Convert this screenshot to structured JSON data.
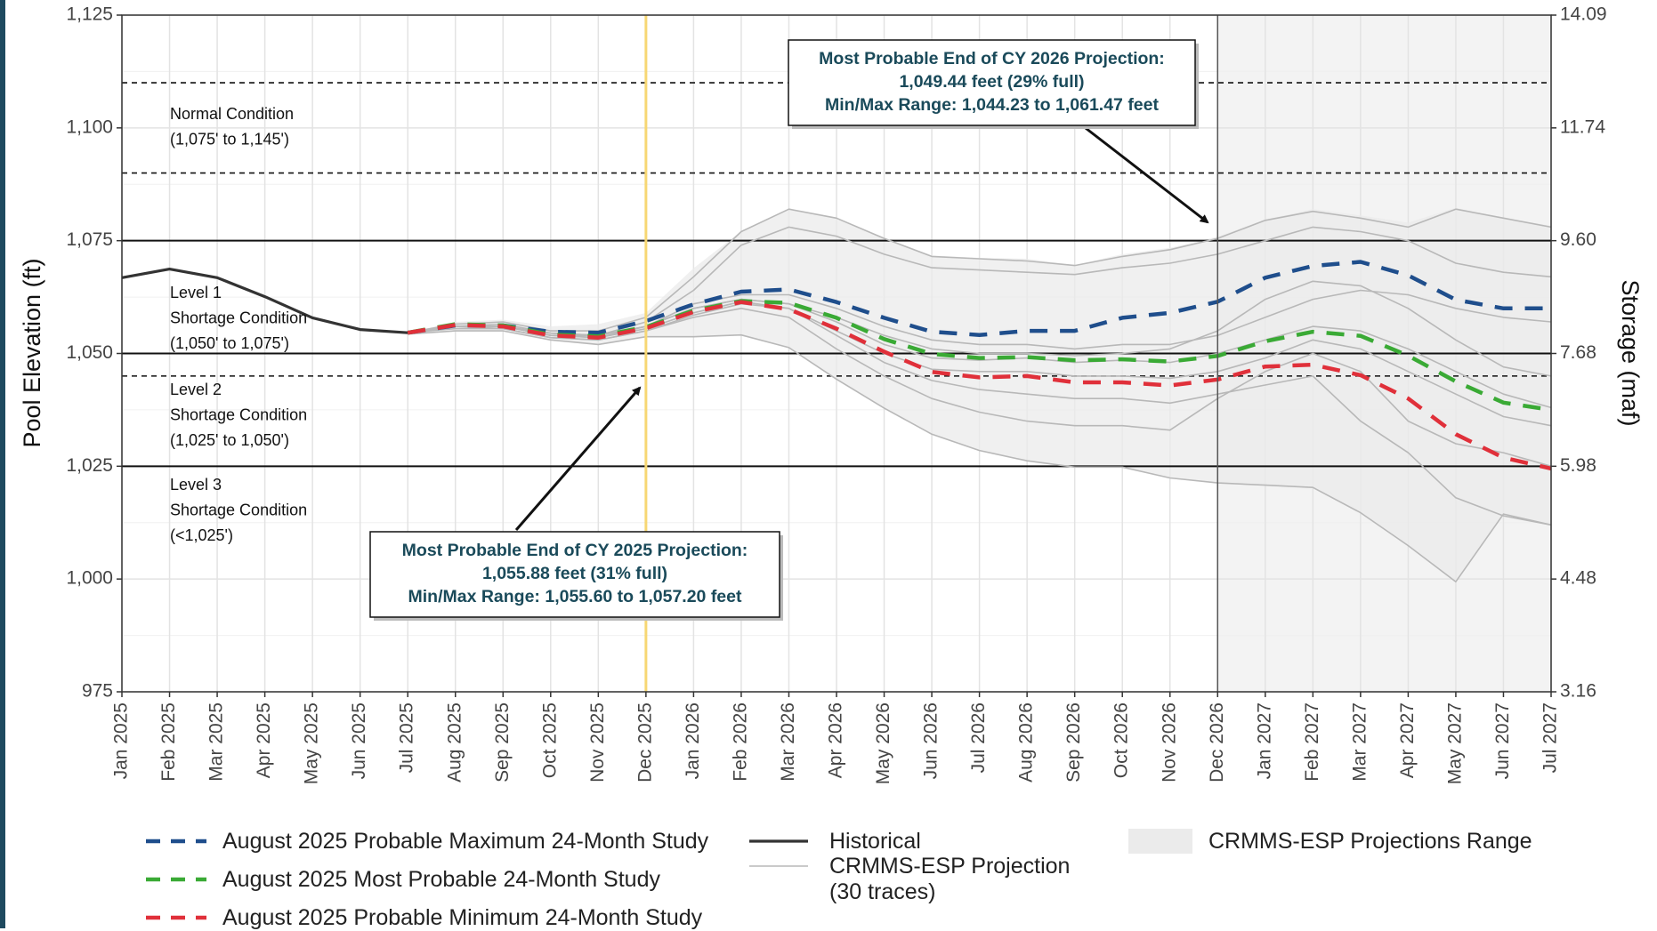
{
  "chart_data": {
    "type": "line",
    "y_label": "Pool Elevation (ft)",
    "y2_label": "Storage (maf)",
    "x": [
      "Jan 2025",
      "Feb 2025",
      "Mar 2025",
      "Apr 2025",
      "May 2025",
      "Jun 2025",
      "Jul 2025",
      "Aug 2025",
      "Sep 2025",
      "Oct 2025",
      "Nov 2025",
      "Dec 2025",
      "Jan 2026",
      "Feb 2026",
      "Mar 2026",
      "Apr 2026",
      "May 2026",
      "Jun 2026",
      "Jul 2026",
      "Aug 2026",
      "Sep 2026",
      "Oct 2026",
      "Nov 2026",
      "Dec 2026",
      "Jan 2027",
      "Feb 2027",
      "Mar 2027",
      "Apr 2027",
      "May 2027",
      "Jun 2027",
      "Jul 2027"
    ],
    "ylim": [
      975,
      1125
    ],
    "yticks": [
      975,
      {
        "value": 1000,
        "label": "1,000"
      },
      {
        "value": 1025,
        "label": "1,025"
      },
      {
        "value": 1050,
        "label": "1,050"
      },
      {
        "value": 1075,
        "label": "1,075"
      },
      {
        "value": 1100,
        "label": "1,100"
      },
      {
        "value": 1125,
        "label": "1,125"
      }
    ],
    "y2ticks": [
      3.16,
      4.48,
      5.98,
      7.68,
      {
        "value": 9.6,
        "label": "9.60"
      },
      11.74,
      14.09
    ],
    "grid": true,
    "series": [
      {
        "name": "Historical",
        "color": "#333333",
        "style": "solid",
        "values": [
          1066.8,
          1068.7,
          1066.8,
          1062.6,
          1057.9,
          1055.3,
          1054.6,
          null,
          null,
          null,
          null,
          null,
          null,
          null,
          null,
          null,
          null,
          null,
          null,
          null,
          null,
          null,
          null,
          null,
          null,
          null,
          null,
          null,
          null,
          null,
          null
        ]
      },
      {
        "name": "August 2025 Probable Maximum 24-Month Study",
        "color": "#1f4e8c",
        "style": "dashed",
        "values": [
          null,
          null,
          null,
          null,
          null,
          null,
          1054.6,
          1056.2,
          1056.2,
          1054.8,
          1054.6,
          1057.2,
          1060.9,
          1063.7,
          1064.2,
          1061.4,
          1057.9,
          1054.8,
          1054.1,
          1055.0,
          1055.0,
          1057.9,
          1059.0,
          1061.47,
          1066.8,
          1069.4,
          1070.3,
          1067.3,
          1061.9,
          1060.0,
          1060.0
        ]
      },
      {
        "name": "August 2025 Most Probable 24-Month Study",
        "color": "#3aaa35",
        "style": "dashed",
        "values": [
          null,
          null,
          null,
          null,
          null,
          null,
          1054.6,
          1056.5,
          1056.2,
          1054.2,
          1053.8,
          1055.88,
          1059.5,
          1061.6,
          1061.2,
          1057.9,
          1053.2,
          1049.9,
          1049.0,
          1049.2,
          1048.5,
          1048.7,
          1048.2,
          1049.44,
          1052.7,
          1054.8,
          1053.9,
          1049.5,
          1043.8,
          1039.1,
          1037.5
        ]
      },
      {
        "name": "August 2025 Probable Minimum 24-Month Study",
        "color": "#e0303a",
        "style": "dashed",
        "values": [
          null,
          null,
          null,
          null,
          null,
          null,
          1054.6,
          1056.3,
          1056.0,
          1054.0,
          1053.5,
          1055.6,
          1059.2,
          1061.4,
          1059.8,
          1055.5,
          1050.4,
          1045.9,
          1044.7,
          1045.0,
          1043.6,
          1043.6,
          1042.9,
          1044.23,
          1047.1,
          1047.5,
          1045.2,
          1040.0,
          1032.1,
          1026.9,
          1024.5
        ]
      }
    ],
    "traces": {
      "name": "CRMMS-ESP Projection (30 traces)",
      "color": "#b8b8b8",
      "values": [
        [
          null,
          null,
          null,
          null,
          null,
          null,
          1054.6,
          1056.5,
          1057,
          1055,
          1055,
          1058,
          1067,
          1077,
          1082,
          1080,
          1075.5,
          1071.5,
          1071,
          1070.5,
          1069.5,
          1071.5,
          1073,
          1075.5,
          1079.5,
          1081.5,
          1080,
          1078,
          1082,
          1080,
          1078
        ],
        [
          null,
          null,
          null,
          null,
          null,
          null,
          1054.6,
          1056,
          1056.5,
          1054.5,
          1054,
          1057,
          1064,
          1074,
          1078,
          1076,
          1072,
          1069,
          1068.5,
          1068,
          1067.5,
          1069,
          1070,
          1072,
          1075,
          1078,
          1077,
          1075,
          1070,
          1068,
          1067
        ],
        [
          null,
          null,
          null,
          null,
          null,
          null,
          1054.6,
          1056,
          1056,
          1054.5,
          1054,
          1056,
          1061,
          1063,
          1063,
          1060,
          1056,
          1053,
          1052,
          1052,
          1051,
          1052,
          1052,
          1054,
          1058,
          1062,
          1064,
          1063,
          1060,
          1058,
          1057
        ],
        [
          null,
          null,
          null,
          null,
          null,
          null,
          1054.6,
          1056,
          1056,
          1054,
          1053.5,
          1056,
          1060,
          1062,
          1061,
          1057,
          1052,
          1049,
          1048.5,
          1049,
          1048,
          1048.5,
          1048,
          1050,
          1053,
          1056,
          1055,
          1051,
          1046,
          1041,
          1038
        ],
        [
          null,
          null,
          null,
          null,
          null,
          null,
          1054.6,
          1056,
          1056,
          1054,
          1053.5,
          1055.5,
          1059,
          1061.5,
          1060,
          1055,
          1050,
          1046.5,
          1046,
          1046,
          1045,
          1045,
          1044.5,
          1046,
          1049,
          1053,
          1051,
          1046,
          1041,
          1036,
          1034
        ],
        [
          null,
          null,
          null,
          null,
          null,
          null,
          1054.6,
          1056,
          1055.5,
          1053.5,
          1053,
          1055,
          1058,
          1060,
          1058,
          1051,
          1045,
          1040,
          1037,
          1035,
          1034,
          1034,
          1033,
          1040,
          1046,
          1050,
          1046,
          1035,
          1030,
          1028,
          1025
        ],
        [
          null,
          null,
          null,
          null,
          null,
          null,
          1054.6,
          1055.5,
          1055.5,
          1053.5,
          1053,
          1055,
          1058.5,
          1061,
          1060,
          1054,
          1048,
          1044,
          1042,
          1041,
          1040,
          1040,
          1039,
          1041,
          1043,
          1045,
          1035,
          1028,
          1018,
          1014,
          1012
        ],
        [
          null,
          null,
          null,
          null,
          null,
          null,
          1054.3,
          1055,
          1055,
          1053,
          1052,
          1053.7,
          1053.7,
          1054.1,
          1051.3,
          1044.3,
          1037.9,
          1032.1,
          1028.5,
          1026.2,
          1024.8,
          1024.8,
          1022.4,
          1021.3,
          1020.8,
          1020.3,
          1014.7,
          1007.4,
          999.4,
          1014.4,
          1012
        ],
        [
          null,
          null,
          null,
          null,
          null,
          null,
          1054.6,
          1056,
          1056,
          1054,
          1054,
          1056,
          1060,
          1062,
          1061,
          1058,
          1054,
          1051,
          1050,
          1050,
          1049.5,
          1050,
          1051,
          1055,
          1062,
          1066,
          1065,
          1060,
          1053,
          1047,
          1045
        ]
      ]
    },
    "range": {
      "name": "CRMMS-ESP Projections Range",
      "color": "#ebebeb",
      "upper": [
        null,
        null,
        null,
        null,
        null,
        null,
        1054.6,
        1057,
        1057.5,
        1056,
        1056.5,
        1059,
        1068.9,
        1077.1,
        1082,
        1080,
        1075.7,
        1071.7,
        1071.2,
        1071,
        1069.6,
        1072,
        1073.4,
        1075.9,
        1079.7,
        1082,
        1080.6,
        1079,
        1082.3,
        1080,
        1078.3
      ],
      "lower": [
        null,
        null,
        null,
        null,
        null,
        null,
        1054.3,
        1055,
        1055,
        1053,
        1052,
        1053.7,
        1053.7,
        1054.1,
        1051.3,
        1044.3,
        1037.9,
        1032.1,
        1028.5,
        1026.2,
        1024.8,
        1024.8,
        1022.4,
        1021.3,
        1020.8,
        1020.3,
        1014.7,
        1007.4,
        999.4,
        1014.4,
        1012
      ]
    },
    "reference_lines": [
      {
        "value": 1110,
        "style": "dashed"
      },
      {
        "value": 1090,
        "style": "dashed"
      },
      {
        "value": 1075,
        "style": "solid"
      },
      {
        "value": 1050,
        "style": "solid"
      },
      {
        "value": 1045,
        "style": "dashed"
      },
      {
        "value": 1025,
        "style": "solid"
      }
    ],
    "vertical_lines": [
      {
        "x": "Dec 2025",
        "color": "#f7d774"
      },
      {
        "x": "Dec 2026",
        "color": "#555555"
      }
    ],
    "shaded_from": "Dec 2026",
    "condition_labels": [
      [
        "Normal Condition",
        "(1,075' to 1,145')"
      ],
      [
        "Level 1",
        "Shortage Condition",
        "(1,050' to 1,075')"
      ],
      [
        "Level 2",
        "Shortage Condition",
        "(1,025' to 1,050')"
      ],
      [
        "Level 3",
        "Shortage Condition",
        "(<1,025')"
      ]
    ],
    "annotations": [
      {
        "lines": [
          "Most Probable End of CY 2026 Projection:",
          "1,049.44 feet (29% full)",
          "Min/Max Range: 1,044.23 to 1,061.47 feet"
        ]
      },
      {
        "lines": [
          "Most Probable End of CY 2025 Projection:",
          "1,055.88 feet (31% full)",
          "Min/Max Range: 1,055.60 to 1,057.20 feet"
        ]
      }
    ]
  }
}
